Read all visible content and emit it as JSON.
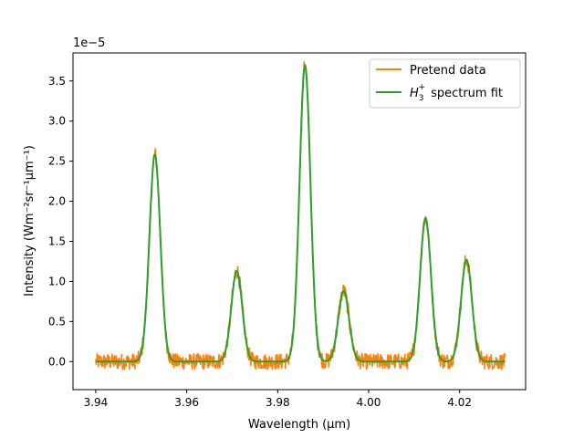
{
  "chart_data": {
    "type": "line",
    "title": "",
    "xlabel": "Wavelength (μm)",
    "ylabel": "Intensity (Wm⁻²sr⁻¹μm⁻¹)",
    "y_scale_label": "1e−5",
    "xlim": [
      3.935,
      4.0345
    ],
    "ylim": [
      -0.35,
      3.85
    ],
    "x_ticks": [
      3.94,
      3.96,
      3.98,
      4.0,
      4.02
    ],
    "x_tick_labels": [
      "3.94",
      "3.96",
      "3.98",
      "4.00",
      "4.02"
    ],
    "y_ticks": [
      0.0,
      0.5,
      1.0,
      1.5,
      2.0,
      2.5,
      3.0,
      3.5
    ],
    "y_tick_labels": [
      "0.0",
      "0.5",
      "1.0",
      "1.5",
      "2.0",
      "2.5",
      "3.0",
      "3.5"
    ],
    "grid": false,
    "legend_position": "top-right",
    "series": [
      {
        "name": "Pretend data",
        "color": "#ff7f0e",
        "noise_amplitude": 0.1
      },
      {
        "name": "H3+ spectrum fit",
        "color": "#2ca02c",
        "x_range": [
          3.94,
          4.03
        ],
        "peaks": [
          {
            "center": 3.953,
            "amplitude": 2.58,
            "sigma": 0.0012
          },
          {
            "center": 3.971,
            "amplitude": 1.13,
            "sigma": 0.0012
          },
          {
            "center": 3.986,
            "amplitude": 3.7,
            "sigma": 0.0012
          },
          {
            "center": 3.9945,
            "amplitude": 0.88,
            "sigma": 0.0012
          },
          {
            "center": 4.0125,
            "amplitude": 1.79,
            "sigma": 0.0012
          },
          {
            "center": 4.0215,
            "amplitude": 1.27,
            "sigma": 0.0012
          }
        ]
      }
    ]
  }
}
